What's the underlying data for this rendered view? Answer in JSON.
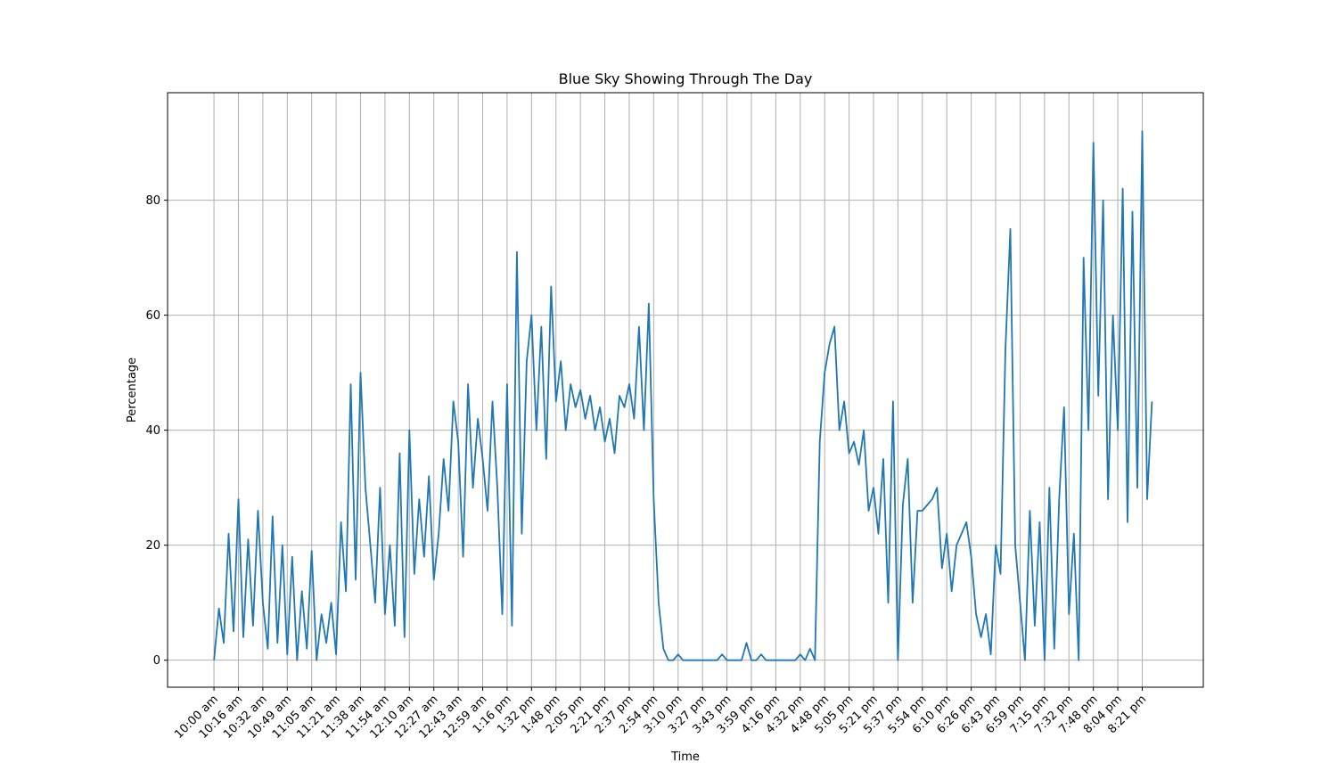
{
  "chart_data": {
    "type": "line",
    "title": "Blue Sky Showing Through The Day",
    "xlabel": "Time",
    "ylabel": "Percentage",
    "ylim": [
      -4.7,
      98.7
    ],
    "yticks": [
      0,
      20,
      40,
      60,
      80
    ],
    "grid": true,
    "line_color": "#1f77b4",
    "grid_color": "#b0b0b0",
    "x_tick_labels": [
      "10:00 am",
      "10:16 am",
      "10:32 am",
      "10:49 am",
      "11:05 am",
      "11:21 am",
      "11:38 am",
      "11:54 am",
      "12:10 am",
      "12:27 am",
      "12:43 am",
      "12:59 am",
      "1:16 pm",
      "1:32 pm",
      "1:48 pm",
      "2:05 pm",
      "2:21 pm",
      "2:37 pm",
      "2:54 pm",
      "3:10 pm",
      "3:27 pm",
      "3:43 pm",
      "3:59 pm",
      "4:16 pm",
      "4:32 pm",
      "4:48 pm",
      "5:05 pm",
      "5:21 pm",
      "5:37 pm",
      "5:54 pm",
      "6:10 pm",
      "6:26 pm",
      "6:43 pm",
      "6:59 pm",
      "7:15 pm",
      "7:32 pm",
      "7:48 pm",
      "8:04 pm",
      "8:21 pm"
    ],
    "x_range": [
      -1.9,
      40.5
    ],
    "series": [
      {
        "x": [
          0,
          0.2,
          0.4,
          0.6,
          0.8,
          1.0,
          1.2,
          1.4,
          1.6,
          1.8,
          2.0,
          2.2,
          2.4,
          2.6,
          2.8,
          3.0,
          3.2,
          3.4,
          3.6,
          3.8,
          4.0,
          4.2,
          4.4,
          4.6,
          4.8,
          5.0,
          5.2,
          5.4,
          5.6,
          5.8,
          6.0,
          6.2,
          6.4,
          6.6,
          6.8,
          7.0,
          7.2,
          7.4,
          7.6,
          7.8,
          8.0,
          8.2,
          8.4,
          8.6,
          8.8,
          9.0,
          9.2,
          9.4,
          9.6,
          9.8,
          10.0,
          10.2,
          10.4,
          10.6,
          10.8,
          11.0,
          11.2,
          11.4,
          11.6,
          11.8,
          12.0,
          12.2,
          12.4,
          12.6,
          12.8,
          13.0,
          13.2,
          13.4,
          13.6,
          13.8,
          14.0,
          14.2,
          14.4,
          14.6,
          14.8,
          15.0,
          15.2,
          15.4,
          15.6,
          15.8,
          16.0,
          16.2,
          16.4,
          16.6,
          16.8,
          17.0,
          17.2,
          17.4,
          17.6,
          17.8,
          18.0,
          18.2,
          18.4,
          18.6,
          18.8,
          19.0,
          19.2,
          19.4,
          19.6,
          19.8,
          20.0,
          20.2,
          20.4,
          20.6,
          20.8,
          21.0,
          21.2,
          21.4,
          21.6,
          21.8,
          22.0,
          22.2,
          22.4,
          22.6,
          22.8,
          23.0,
          23.2,
          23.4,
          23.6,
          23.8,
          24.0,
          24.2,
          24.4,
          24.6,
          24.8,
          25.0,
          25.2,
          25.4,
          25.6,
          25.8,
          26.0,
          26.2,
          26.4,
          26.6,
          26.8,
          27.0,
          27.2,
          27.4,
          27.6,
          27.8,
          28.0,
          28.2,
          28.4,
          28.6,
          28.8,
          29.0,
          29.2,
          29.4,
          29.6,
          29.8,
          30.0,
          30.2,
          30.4,
          30.6,
          30.8,
          31.0,
          31.2,
          31.4,
          31.6,
          31.8,
          32.0,
          32.2,
          32.4,
          32.6,
          32.8,
          33.0,
          33.2,
          33.4,
          33.6,
          33.8,
          34.0,
          34.2,
          34.4,
          34.6,
          34.8,
          35.0,
          35.2,
          35.4,
          35.6,
          35.8,
          36.0,
          36.2,
          36.4,
          36.6,
          36.8,
          37.0,
          37.2,
          37.4,
          37.6,
          37.8,
          38.0,
          38.2,
          38.4
        ],
        "y": [
          0,
          9,
          3,
          22,
          5,
          28,
          4,
          21,
          6,
          26,
          10,
          2,
          25,
          3,
          20,
          1,
          18,
          0,
          12,
          2,
          19,
          0,
          8,
          3,
          10,
          1,
          24,
          12,
          48,
          14,
          50,
          30,
          20,
          10,
          30,
          8,
          20,
          6,
          36,
          4,
          40,
          15,
          28,
          18,
          32,
          14,
          22,
          35,
          26,
          45,
          38,
          18,
          48,
          30,
          42,
          35,
          26,
          45,
          30,
          8,
          48,
          6,
          71,
          22,
          52,
          60,
          40,
          58,
          35,
          65,
          45,
          52,
          40,
          48,
          44,
          47,
          42,
          46,
          40,
          44,
          38,
          42,
          36,
          46,
          44,
          48,
          42,
          58,
          40,
          62,
          28,
          10,
          2,
          0,
          0,
          1,
          0,
          0,
          0,
          0,
          0,
          0,
          0,
          0,
          1,
          0,
          0,
          0,
          0,
          3,
          0,
          0,
          1,
          0,
          0,
          0,
          0,
          0,
          0,
          0,
          1,
          0,
          2,
          0,
          38,
          50,
          55,
          58,
          40,
          45,
          36,
          38,
          34,
          40,
          26,
          30,
          22,
          35,
          10,
          45,
          0,
          27,
          35,
          10,
          26,
          26,
          27,
          28,
          30,
          16,
          22,
          12,
          20,
          22,
          24,
          18,
          8,
          4,
          8,
          1,
          20,
          15,
          54,
          75,
          20,
          10,
          0,
          26,
          6,
          24,
          0,
          30,
          2,
          28,
          44,
          8,
          22,
          0,
          70,
          40,
          90,
          46,
          80,
          28,
          60,
          40,
          82,
          24,
          78,
          30,
          92,
          28,
          45
        ]
      }
    ]
  }
}
